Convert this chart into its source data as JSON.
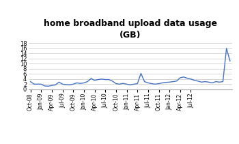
{
  "title": "home broadband upload data usage\n(GB)",
  "line_color": "#4472C4",
  "background_color": "#ffffff",
  "ylim": [
    0,
    18
  ],
  "yticks": [
    0,
    2,
    4,
    6,
    8,
    10,
    12,
    14,
    16,
    18
  ],
  "x_labels": [
    "Oct-08",
    "Jan-09",
    "Apr-09",
    "Jul-09",
    "Oct-09",
    "Jan-10",
    "Apr-10",
    "Jul-10",
    "Oct-10",
    "Jan-11",
    "Apr-11",
    "Jul-11",
    "Oct-11",
    "Jan-12",
    "Apr-12",
    "Jul-12"
  ],
  "values": [
    3.0,
    2.0,
    2.0,
    2.0,
    1.3,
    1.2,
    1.5,
    1.7,
    2.8,
    2.0,
    1.8,
    1.7,
    2.0,
    2.5,
    2.3,
    2.5,
    3.0,
    4.2,
    3.5,
    3.8,
    4.0,
    3.8,
    3.8,
    3.2,
    2.2,
    2.0,
    2.3,
    2.0,
    1.7,
    2.0,
    2.2,
    6.2,
    3.0,
    2.5,
    2.2,
    2.0,
    2.2,
    2.5,
    2.7,
    2.8,
    3.0,
    3.2,
    4.5,
    4.8,
    4.3,
    4.0,
    3.5,
    3.2,
    2.8,
    3.0,
    2.8,
    2.5,
    3.0,
    2.8,
    3.0,
    16.0,
    11.0
  ],
  "figsize": [
    3.5,
    2.11
  ],
  "dpi": 100,
  "title_fontsize": 9,
  "ytick_fontsize": 6,
  "xtick_fontsize": 5.5,
  "line_width": 1.0,
  "grid_color": "#c8c8c8",
  "spine_color": "#aaaaaa"
}
